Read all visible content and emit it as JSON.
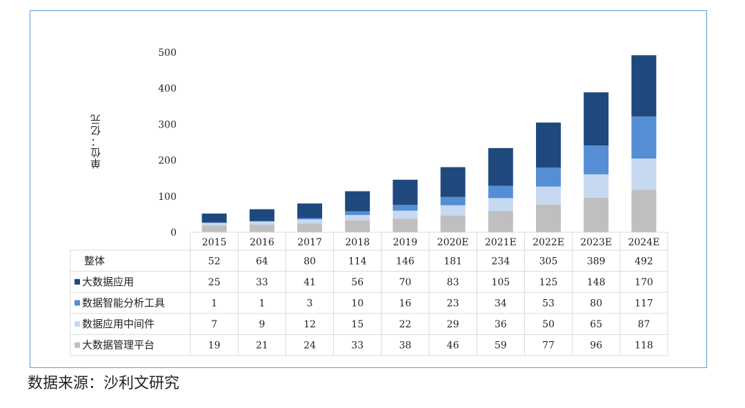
{
  "source_note": "数据来源：沙利文研究",
  "colors": {
    "frame": "#5b9bd5",
    "grid_line": "#d9d9d9"
  },
  "chart_data": {
    "type": "bar",
    "stacked": true,
    "title": "",
    "xlabel": "",
    "ylabel": "单位：亿元",
    "ylim": [
      0,
      500
    ],
    "yticks": [
      "0",
      "100",
      "200",
      "300",
      "400",
      "500"
    ],
    "categories": [
      "2015",
      "2016",
      "2017",
      "2018",
      "2019",
      "2020E",
      "2021E",
      "2022E",
      "2023E",
      "2024E"
    ],
    "total": {
      "name": "整体",
      "values": [
        52,
        64,
        80,
        114,
        146,
        181,
        234,
        305,
        389,
        492
      ]
    },
    "series": [
      {
        "name": "大数据应用",
        "color": "#1f497d",
        "values": [
          25,
          33,
          41,
          56,
          70,
          83,
          105,
          125,
          148,
          170
        ]
      },
      {
        "name": "数据智能分析工具",
        "color": "#558ed5",
        "values": [
          1,
          1,
          3,
          10,
          16,
          23,
          34,
          53,
          80,
          117
        ]
      },
      {
        "name": "数据应用中间件",
        "color": "#c6d9f1",
        "values": [
          7,
          9,
          12,
          15,
          22,
          29,
          36,
          50,
          65,
          87
        ]
      },
      {
        "name": "大数据管理平台",
        "color": "#bfbfbf",
        "values": [
          19,
          21,
          24,
          33,
          38,
          46,
          59,
          77,
          96,
          118
        ]
      }
    ],
    "stack_order": [
      "大数据管理平台",
      "数据应用中间件",
      "数据智能分析工具",
      "大数据应用"
    ],
    "grid": false,
    "data_table": true
  }
}
